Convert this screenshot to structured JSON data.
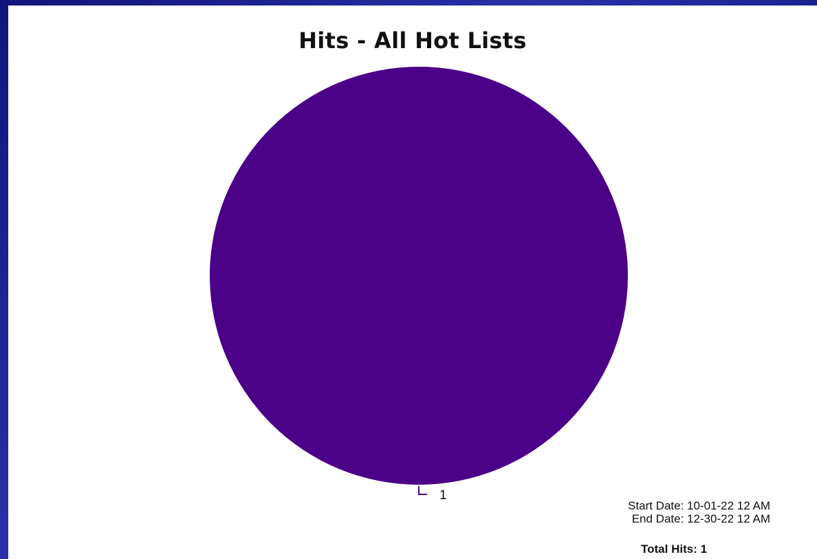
{
  "chart_data": {
    "type": "pie",
    "title": "Hits - All Hot Lists",
    "slices": [
      {
        "label": "1",
        "value": 1,
        "color": "#4b0088"
      }
    ]
  },
  "footer": {
    "start_date": "Start Date: 10-01-22 12 AM",
    "end_date": "End Date: 12-30-22 12 AM",
    "total_label": "Total Hits:",
    "total_value": "1"
  },
  "colors": {
    "slice": "#4b0088",
    "frame": "#1a1f8c",
    "panel": "#ffffff"
  }
}
